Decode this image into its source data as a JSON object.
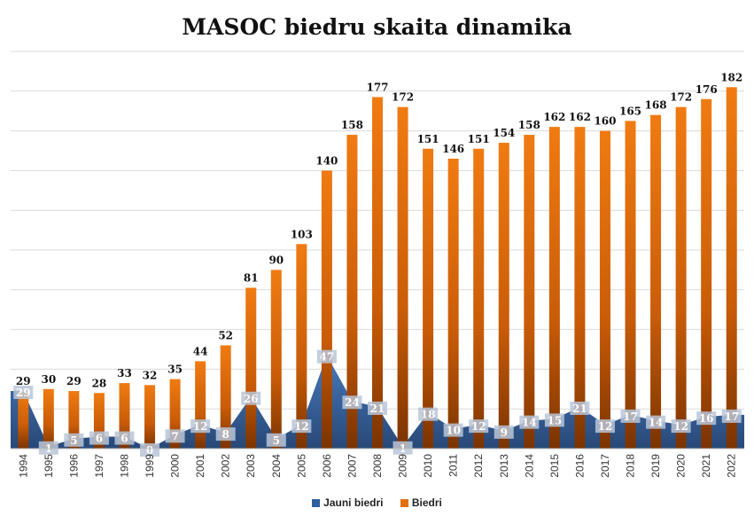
{
  "chart_data": {
    "type": "bar",
    "title": "MASOC biedru skaita dinamika",
    "xlabel": "",
    "ylabel": "",
    "ylim": [
      0,
      200
    ],
    "grid": true,
    "legend_position": "bottom",
    "categories": [
      "1994",
      "1995",
      "1996",
      "1997",
      "1998",
      "1999",
      "2000",
      "2001",
      "2002",
      "2003",
      "2004",
      "2005",
      "2006",
      "2007",
      "2008",
      "2009",
      "2010",
      "2011",
      "2012",
      "2013",
      "2014",
      "2015",
      "2016",
      "2017",
      "2018",
      "2019",
      "2020",
      "2021",
      "2022"
    ],
    "series": [
      {
        "name": "Jauni biedri",
        "type": "area",
        "color": "#2e5f9e",
        "values": [
          29,
          1,
          5,
          6,
          6,
          0,
          7,
          12,
          8,
          26,
          5,
          12,
          47,
          24,
          21,
          1,
          18,
          10,
          12,
          9,
          14,
          15,
          21,
          12,
          17,
          14,
          12,
          16,
          17
        ]
      },
      {
        "name": "Biedri",
        "type": "bar",
        "color": "#e3700f",
        "values": [
          29,
          30,
          29,
          28,
          33,
          32,
          35,
          44,
          52,
          81,
          90,
          103,
          140,
          158,
          177,
          172,
          151,
          146,
          151,
          154,
          158,
          162,
          162,
          160,
          165,
          168,
          172,
          176,
          182
        ]
      }
    ]
  }
}
